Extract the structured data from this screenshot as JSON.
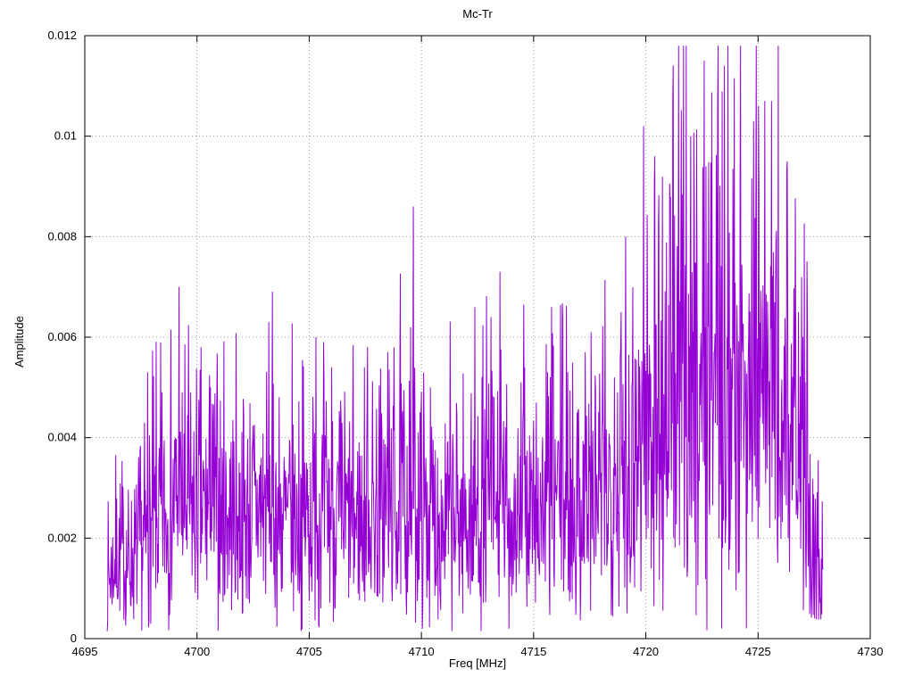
{
  "window": {
    "background": "#ffffff"
  },
  "chart_data": {
    "type": "line",
    "title": "Mc-Tr",
    "xlabel": "Freq [MHz]",
    "ylabel": "Amplitude",
    "xlim": [
      4695,
      4730
    ],
    "ylim": [
      0,
      0.012
    ],
    "xticks": [
      4695,
      4700,
      4705,
      4710,
      4715,
      4720,
      4725,
      4730
    ],
    "xtick_labels": [
      "4695",
      "4700",
      "4705",
      "4710",
      "4715",
      "4720",
      "4725",
      "4730"
    ],
    "yticks": [
      0,
      0.002,
      0.004,
      0.006,
      0.008,
      0.01,
      0.012
    ],
    "ytick_labels": [
      "0",
      "0.002",
      "0.004",
      "0.006",
      "0.008",
      "0.01",
      "0.012"
    ],
    "grid": true,
    "grid_style": "dotted",
    "grid_color": "#9a9a9a",
    "border_color": "#000000",
    "line_color": "#9400d3",
    "legend": "none",
    "data_range": [
      4696.0,
      4727.9
    ],
    "sample_step": 0.02,
    "noise_seed": 7,
    "noise_model": "rayleigh",
    "envelope_mean": [
      [
        4696.0,
        0.0012
      ],
      [
        4696.5,
        0.0018
      ],
      [
        4697.0,
        0.0015
      ],
      [
        4698.0,
        0.0022
      ],
      [
        4699.0,
        0.0028
      ],
      [
        4700.0,
        0.0026
      ],
      [
        4701.0,
        0.0027
      ],
      [
        4702.0,
        0.0025
      ],
      [
        4703.0,
        0.0028
      ],
      [
        4704.0,
        0.0024
      ],
      [
        4705.0,
        0.0026
      ],
      [
        4706.0,
        0.0025
      ],
      [
        4707.0,
        0.0024
      ],
      [
        4708.0,
        0.0027
      ],
      [
        4709.0,
        0.0028
      ],
      [
        4710.0,
        0.0027
      ],
      [
        4711.0,
        0.0024
      ],
      [
        4712.0,
        0.0025
      ],
      [
        4713.0,
        0.0028
      ],
      [
        4714.0,
        0.0025
      ],
      [
        4715.0,
        0.0026
      ],
      [
        4716.0,
        0.003
      ],
      [
        4717.0,
        0.0028
      ],
      [
        4718.0,
        0.003
      ],
      [
        4719.0,
        0.0036
      ],
      [
        4720.0,
        0.0045
      ],
      [
        4721.0,
        0.005
      ],
      [
        4722.0,
        0.0055
      ],
      [
        4723.0,
        0.0058
      ],
      [
        4724.0,
        0.0052
      ],
      [
        4725.0,
        0.0055
      ],
      [
        4726.0,
        0.0048
      ],
      [
        4727.0,
        0.0035
      ],
      [
        4727.5,
        0.0018
      ],
      [
        4728.0,
        0.001
      ]
    ],
    "peaks": [
      [
        4697.8,
        0.0053
      ],
      [
        4699.2,
        0.007
      ],
      [
        4700.6,
        0.005
      ],
      [
        4703.2,
        0.0063
      ],
      [
        4705.3,
        0.006
      ],
      [
        4706.0,
        0.0054
      ],
      [
        4707.6,
        0.0058
      ],
      [
        4708.5,
        0.0057
      ],
      [
        4709.65,
        0.0086
      ],
      [
        4710.4,
        0.005
      ],
      [
        4713.1,
        0.0064
      ],
      [
        4713.5,
        0.0073
      ],
      [
        4714.6,
        0.0054
      ],
      [
        4715.8,
        0.0066
      ],
      [
        4716.3,
        0.0064
      ],
      [
        4717.3,
        0.0057
      ],
      [
        4718.6,
        0.0052
      ],
      [
        4719.1,
        0.008
      ],
      [
        4719.9,
        0.0102
      ],
      [
        4720.4,
        0.0096
      ],
      [
        4721.2,
        0.0107
      ],
      [
        4722.0,
        0.01
      ],
      [
        4722.6,
        0.0115
      ],
      [
        4723.2,
        0.0106
      ],
      [
        4723.5,
        0.0114
      ],
      [
        4724.2,
        0.0092
      ],
      [
        4724.8,
        0.0103
      ],
      [
        4725.3,
        0.0107
      ],
      [
        4725.6,
        0.0107
      ],
      [
        4726.3,
        0.0095
      ],
      [
        4726.8,
        0.0065
      ],
      [
        4727.2,
        0.0063
      ]
    ]
  }
}
